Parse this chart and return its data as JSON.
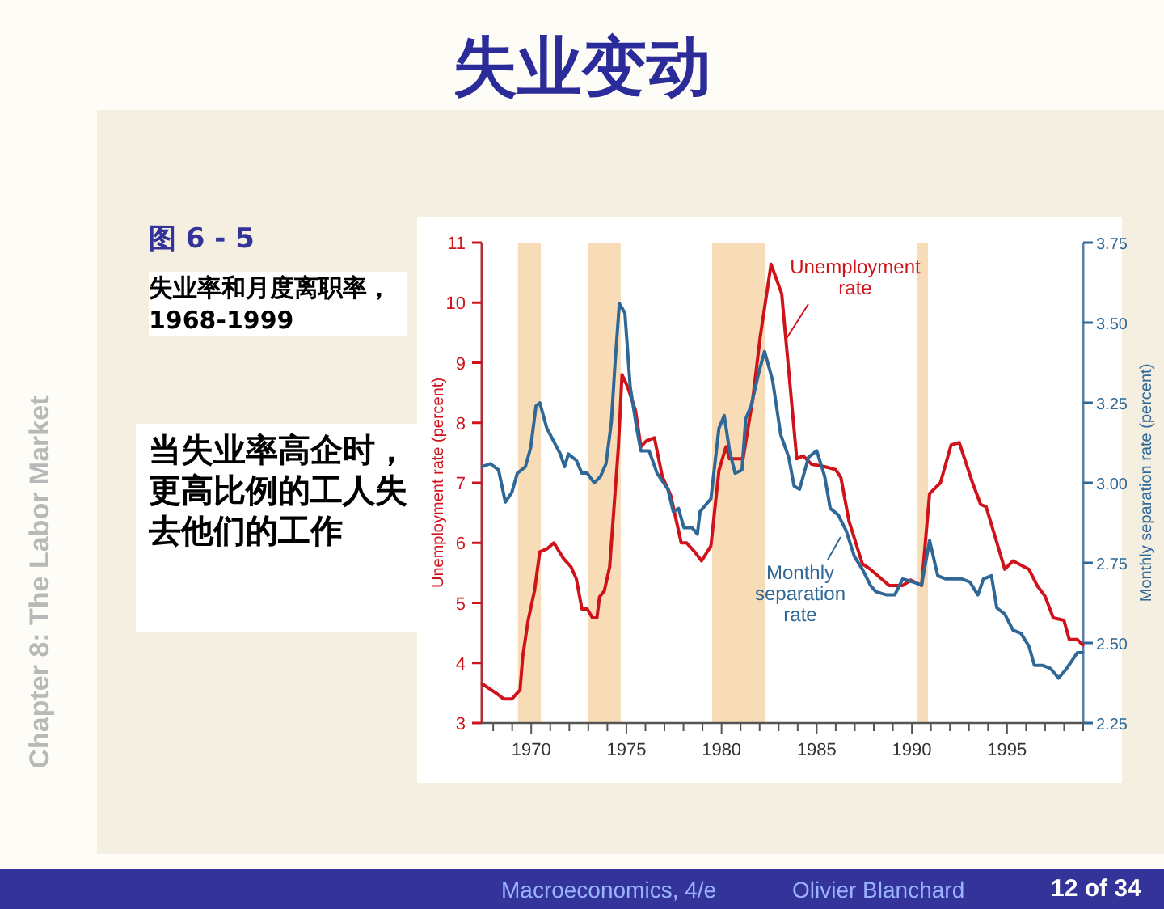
{
  "chart_data": {
    "type": "line",
    "title": "失业变动",
    "annotations": [
      "图 6 - 5",
      "失业率和月度离职率，1968-1999",
      "当失业率高企时，更高比例的工人失去他们的工作",
      "Chapter 8: The Labor Market",
      "Macroeconomics, 4/e",
      "Olivier Blanchard",
      "12 of 34"
    ],
    "ylabel": "Unemployment rate (percent)",
    "y2label": "Monthly separation rate (percent)",
    "xlim": [
      1967.4,
      1999.0
    ],
    "xticks": [
      {
        "value": 1968,
        "label": null
      },
      {
        "value": 1969,
        "label": null
      },
      1970,
      {
        "value": 1971,
        "label": null
      },
      {
        "value": 1972,
        "label": null
      },
      {
        "value": 1973,
        "label": null
      },
      {
        "value": 1974,
        "label": null
      },
      1975,
      {
        "value": 1976,
        "label": null
      },
      {
        "value": 1977,
        "label": null
      },
      {
        "value": 1978,
        "label": null
      },
      {
        "value": 1979,
        "label": null
      },
      1980,
      {
        "value": 1981,
        "label": null
      },
      {
        "value": 1982,
        "label": null
      },
      {
        "value": 1983,
        "label": null
      },
      {
        "value": 1984,
        "label": null
      },
      1985,
      {
        "value": 1986,
        "label": null
      },
      {
        "value": 1987,
        "label": null
      },
      {
        "value": 1988,
        "label": null
      },
      {
        "value": 1989,
        "label": null
      },
      1990,
      {
        "value": 1991,
        "label": null
      },
      {
        "value": 1992,
        "label": null
      },
      {
        "value": 1993,
        "label": null
      },
      {
        "value": 1994,
        "label": null
      },
      1995,
      {
        "value": 1996,
        "label": null
      },
      {
        "value": 1997,
        "label": null
      },
      {
        "value": 1998,
        "label": null
      },
      {
        "value": 1999,
        "label": null
      }
    ],
    "ylim": [
      3,
      11
    ],
    "yticks": [
      3,
      4,
      5,
      6,
      7,
      8,
      9,
      10,
      11
    ],
    "y2lim": [
      2.25,
      3.75
    ],
    "y2ticks": [
      2.25,
      {
        "value": 2.5,
        "label": "2.50"
      },
      2.75,
      {
        "value": 3.0,
        "label": "3.00"
      },
      3.25,
      {
        "value": 3.5,
        "label": "3.50"
      },
      3.75
    ],
    "bands": [
      {
        "axis": "x",
        "from": 1969.3,
        "to": 1970.5,
        "color": "#f8dcb8"
      },
      {
        "axis": "x",
        "from": 1973.0,
        "to": 1974.7,
        "color": "#f8dcb8"
      },
      {
        "axis": "x",
        "from": 1979.5,
        "to": 1982.3,
        "color": "#f8dcb8"
      },
      {
        "axis": "x",
        "from": 1990.25,
        "to": 1990.85,
        "color": "#f8dcb8"
      }
    ],
    "grid": false,
    "marker": "none",
    "line_style": "solid",
    "series": [
      {
        "name": "Unemployment rate",
        "color": "#d0121b",
        "x": [
          1967.43,
          1968.14,
          1968.56,
          1968.98,
          1969.41,
          1969.55,
          1969.83,
          1970.17,
          1970.45,
          1970.82,
          1971.19,
          1971.67,
          1972.09,
          1972.37,
          1972.66,
          1972.94,
          1973.22,
          1973.45,
          1973.59,
          1973.84,
          1974.12,
          1974.35,
          1974.58,
          1974.77,
          1975.06,
          1975.48,
          1975.76,
          1976.05,
          1976.47,
          1976.89,
          1977.32,
          1977.6,
          1977.88,
          1978.16,
          1978.59,
          1978.95,
          1979.44,
          1979.86,
          1980.23,
          1980.42,
          1981.13,
          1981.64,
          1982.03,
          1982.6,
          1983.16,
          1983.95,
          1984.29,
          1984.72,
          1985.42,
          1985.99,
          1986.27,
          1986.69,
          1987.4,
          1987.82,
          1988.81,
          1989.52,
          1989.94,
          1990.51,
          1990.93,
          1991.5,
          1992.06,
          1992.49,
          1993.19,
          1993.61,
          1993.9,
          1994.46,
          1994.88,
          1995.31,
          1996.15,
          1996.58,
          1997.0,
          1997.43,
          1997.99,
          1998.27,
          1998.7,
          1998.98
        ],
        "values": [
          3.65,
          3.5,
          3.4,
          3.4,
          3.55,
          4.1,
          4.7,
          5.2,
          5.85,
          5.9,
          6.0,
          5.75,
          5.6,
          5.4,
          4.9,
          4.9,
          4.75,
          4.75,
          5.1,
          5.2,
          5.6,
          6.6,
          7.6,
          8.8,
          8.6,
          8.2,
          7.6,
          7.7,
          7.75,
          7.1,
          6.8,
          6.4,
          6.0,
          6.0,
          5.85,
          5.7,
          5.95,
          7.2,
          7.6,
          7.4,
          7.4,
          8.4,
          9.43,
          10.64,
          10.15,
          7.4,
          7.45,
          7.31,
          7.27,
          7.22,
          7.09,
          6.37,
          5.65,
          5.56,
          5.29,
          5.29,
          5.38,
          5.29,
          6.82,
          7.0,
          7.63,
          7.67,
          7.0,
          6.64,
          6.6,
          6.01,
          5.56,
          5.7,
          5.56,
          5.29,
          5.11,
          4.75,
          4.71,
          4.39,
          4.39,
          4.3
        ]
      },
      {
        "name": "Monthly separation rate",
        "color": "#2f6797",
        "axis": "y2",
        "x": [
          1967.43,
          1967.85,
          1968.28,
          1968.64,
          1968.98,
          1969.27,
          1969.69,
          1969.97,
          1970.25,
          1970.45,
          1970.82,
          1971.53,
          1971.75,
          1971.95,
          1972.37,
          1972.66,
          1972.94,
          1973.31,
          1973.64,
          1973.93,
          1974.21,
          1974.41,
          1974.63,
          1974.92,
          1975.2,
          1975.54,
          1975.76,
          1976.19,
          1976.61,
          1977.18,
          1977.46,
          1977.74,
          1978.02,
          1978.45,
          1978.73,
          1978.87,
          1979.44,
          1979.86,
          1980.14,
          1980.42,
          1980.71,
          1981.07,
          1981.27,
          1981.55,
          1981.98,
          1982.26,
          1982.68,
          1983.11,
          1983.53,
          1983.81,
          1984.1,
          1984.57,
          1985.0,
          1985.42,
          1985.71,
          1986.13,
          1986.55,
          1986.98,
          1987.4,
          1987.82,
          1988.11,
          1988.67,
          1989.1,
          1989.52,
          1990.08,
          1990.51,
          1990.93,
          1991.36,
          1991.78,
          1992.63,
          1993.05,
          1993.47,
          1993.76,
          1994.18,
          1994.46,
          1994.88,
          1995.31,
          1995.73,
          1996.15,
          1996.44,
          1996.86,
          1997.29,
          1997.71,
          1998.13,
          1998.7,
          1998.98
        ],
        "values": [
          3.05,
          3.06,
          3.04,
          2.94,
          2.97,
          3.03,
          3.05,
          3.11,
          3.24,
          3.25,
          3.17,
          3.09,
          3.05,
          3.09,
          3.07,
          3.03,
          3.03,
          3.0,
          3.02,
          3.06,
          3.19,
          3.38,
          3.56,
          3.53,
          3.3,
          3.17,
          3.1,
          3.1,
          3.03,
          2.98,
          2.91,
          2.92,
          2.86,
          2.86,
          2.84,
          2.91,
          2.95,
          3.17,
          3.21,
          3.1,
          3.03,
          3.04,
          3.2,
          3.24,
          3.35,
          3.41,
          3.32,
          3.15,
          3.08,
          2.99,
          2.98,
          3.08,
          3.1,
          3.02,
          2.92,
          2.9,
          2.85,
          2.77,
          2.73,
          2.68,
          2.66,
          2.65,
          2.65,
          2.7,
          2.69,
          2.68,
          2.82,
          2.71,
          2.7,
          2.7,
          2.69,
          2.65,
          2.7,
          2.71,
          2.61,
          2.59,
          2.54,
          2.53,
          2.49,
          2.43,
          2.43,
          2.42,
          2.39,
          2.42,
          2.47,
          2.47
        ]
      }
    ]
  }
}
